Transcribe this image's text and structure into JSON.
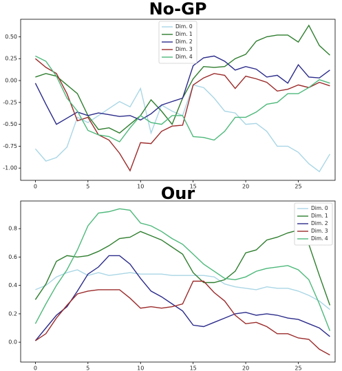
{
  "chart_data": [
    {
      "type": "line",
      "title": "No-GP",
      "x": [
        0,
        1,
        2,
        3,
        4,
        5,
        6,
        7,
        8,
        9,
        10,
        11,
        12,
        13,
        14,
        15,
        16,
        17,
        18,
        19,
        20,
        21,
        22,
        23,
        24,
        25,
        26,
        27,
        28
      ],
      "xlim": [
        -1.4,
        28.5
      ],
      "xticks": [
        0,
        5,
        10,
        15,
        20,
        25
      ],
      "ylim": [
        -1.14,
        0.7
      ],
      "yticks": [
        {
          "value": -1.0,
          "label": "-1.00"
        },
        {
          "value": -0.75,
          "label": "-0.75"
        },
        {
          "value": -0.5,
          "label": "-0.50"
        },
        {
          "value": -0.25,
          "label": "-0.25"
        },
        {
          "value": 0.0,
          "label": "0.00"
        },
        {
          "value": 0.25,
          "label": "0.25"
        },
        {
          "value": 0.5,
          "label": "0.50"
        }
      ],
      "legend": "upper center",
      "series": [
        {
          "name": "Dim. 0",
          "color": "#a9d6e5",
          "values": [
            -0.78,
            -0.92,
            -0.88,
            -0.76,
            -0.42,
            -0.48,
            -0.4,
            -0.32,
            -0.24,
            -0.3,
            -0.09,
            -0.6,
            -0.28,
            -0.35,
            -0.4,
            -0.05,
            -0.08,
            -0.2,
            -0.35,
            -0.37,
            -0.5,
            -0.49,
            -0.58,
            -0.75,
            -0.75,
            -0.82,
            -0.95,
            -1.04,
            -0.84
          ]
        },
        {
          "name": "Dim. 1",
          "color": "#2e7d2e",
          "values": [
            0.04,
            0.08,
            0.05,
            -0.05,
            -0.15,
            -0.4,
            -0.56,
            -0.54,
            -0.6,
            -0.5,
            -0.4,
            -0.22,
            -0.35,
            -0.5,
            -0.2,
            0.02,
            0.16,
            0.15,
            0.16,
            0.25,
            0.3,
            0.45,
            0.5,
            0.52,
            0.52,
            0.44,
            0.63,
            0.4,
            0.29
          ]
        },
        {
          "name": "Dim. 2",
          "color": "#2a2a8a",
          "values": [
            -0.03,
            -0.27,
            -0.5,
            -0.43,
            -0.36,
            -0.4,
            -0.37,
            -0.39,
            -0.41,
            -0.4,
            -0.45,
            -0.38,
            -0.28,
            -0.24,
            -0.2,
            0.17,
            0.26,
            0.28,
            0.22,
            0.12,
            0.16,
            0.13,
            0.04,
            0.06,
            -0.03,
            0.18,
            0.04,
            0.03,
            0.12
          ]
        },
        {
          "name": "Dim. 3",
          "color": "#9b2a2a",
          "values": [
            0.25,
            0.15,
            0.08,
            -0.15,
            -0.46,
            -0.42,
            -0.62,
            -0.68,
            -0.83,
            -1.03,
            -0.71,
            -0.72,
            -0.58,
            -0.52,
            -0.51,
            -0.05,
            0.03,
            0.08,
            0.06,
            -0.09,
            0.05,
            0.02,
            -0.02,
            -0.12,
            -0.1,
            -0.05,
            -0.08,
            -0.02,
            -0.06
          ]
        },
        {
          "name": "Dim. 4",
          "color": "#4cb87a",
          "values": [
            0.28,
            0.22,
            0.05,
            -0.2,
            -0.35,
            -0.57,
            -0.62,
            -0.64,
            -0.7,
            -0.54,
            -0.4,
            -0.48,
            -0.5,
            -0.4,
            -0.4,
            -0.64,
            -0.65,
            -0.68,
            -0.58,
            -0.42,
            -0.42,
            -0.36,
            -0.27,
            -0.25,
            -0.15,
            -0.15,
            -0.08,
            0.01,
            -0.03
          ]
        }
      ]
    },
    {
      "type": "line",
      "title": "Our",
      "x": [
        0,
        1,
        2,
        3,
        4,
        5,
        6,
        7,
        8,
        9,
        10,
        11,
        12,
        13,
        14,
        15,
        16,
        17,
        18,
        19,
        20,
        21,
        22,
        23,
        24,
        25,
        26,
        27,
        28
      ],
      "xlim": [
        -1.4,
        28.5
      ],
      "xticks": [
        0,
        5,
        10,
        15,
        20,
        25
      ],
      "ylim": [
        -0.14,
        0.995
      ],
      "yticks": [
        {
          "value": 0.0,
          "label": "0.0"
        },
        {
          "value": 0.2,
          "label": "0.2"
        },
        {
          "value": 0.4,
          "label": "0.4"
        },
        {
          "value": 0.6,
          "label": "0.6"
        },
        {
          "value": 0.8,
          "label": "0.8"
        }
      ],
      "legend": "upper right",
      "series": [
        {
          "name": "Dim. 0",
          "color": "#a9d6e5",
          "values": [
            0.37,
            0.4,
            0.46,
            0.49,
            0.51,
            0.47,
            0.49,
            0.47,
            0.48,
            0.49,
            0.48,
            0.48,
            0.48,
            0.47,
            0.47,
            0.47,
            0.47,
            0.46,
            0.41,
            0.39,
            0.38,
            0.37,
            0.39,
            0.38,
            0.38,
            0.36,
            0.33,
            0.29,
            0.23
          ]
        },
        {
          "name": "Dim. 1",
          "color": "#2e7d2e",
          "values": [
            0.3,
            0.41,
            0.57,
            0.61,
            0.6,
            0.61,
            0.64,
            0.68,
            0.73,
            0.74,
            0.78,
            0.75,
            0.72,
            0.67,
            0.62,
            0.49,
            0.42,
            0.42,
            0.44,
            0.5,
            0.63,
            0.65,
            0.72,
            0.74,
            0.77,
            0.79,
            0.69,
            0.47,
            0.26
          ]
        },
        {
          "name": "Dim. 2",
          "color": "#2a2a8a",
          "values": [
            0.01,
            0.1,
            0.19,
            0.25,
            0.36,
            0.48,
            0.53,
            0.61,
            0.61,
            0.55,
            0.45,
            0.36,
            0.32,
            0.27,
            0.22,
            0.12,
            0.11,
            0.14,
            0.17,
            0.2,
            0.21,
            0.19,
            0.2,
            0.19,
            0.17,
            0.16,
            0.13,
            0.1,
            0.04
          ]
        },
        {
          "name": "Dim. 3",
          "color": "#9b2a2a",
          "values": [
            0.01,
            0.06,
            0.17,
            0.26,
            0.34,
            0.36,
            0.37,
            0.37,
            0.37,
            0.31,
            0.24,
            0.25,
            0.24,
            0.25,
            0.27,
            0.43,
            0.43,
            0.35,
            0.29,
            0.19,
            0.13,
            0.14,
            0.11,
            0.06,
            0.06,
            0.03,
            0.02,
            -0.05,
            -0.09
          ]
        },
        {
          "name": "Dim. 4",
          "color": "#4cb87a",
          "values": [
            0.13,
            0.27,
            0.4,
            0.51,
            0.65,
            0.82,
            0.91,
            0.92,
            0.94,
            0.93,
            0.84,
            0.82,
            0.78,
            0.73,
            0.69,
            0.62,
            0.55,
            0.5,
            0.45,
            0.44,
            0.46,
            0.5,
            0.52,
            0.53,
            0.54,
            0.51,
            0.44,
            0.27,
            0.08
          ]
        }
      ]
    }
  ]
}
